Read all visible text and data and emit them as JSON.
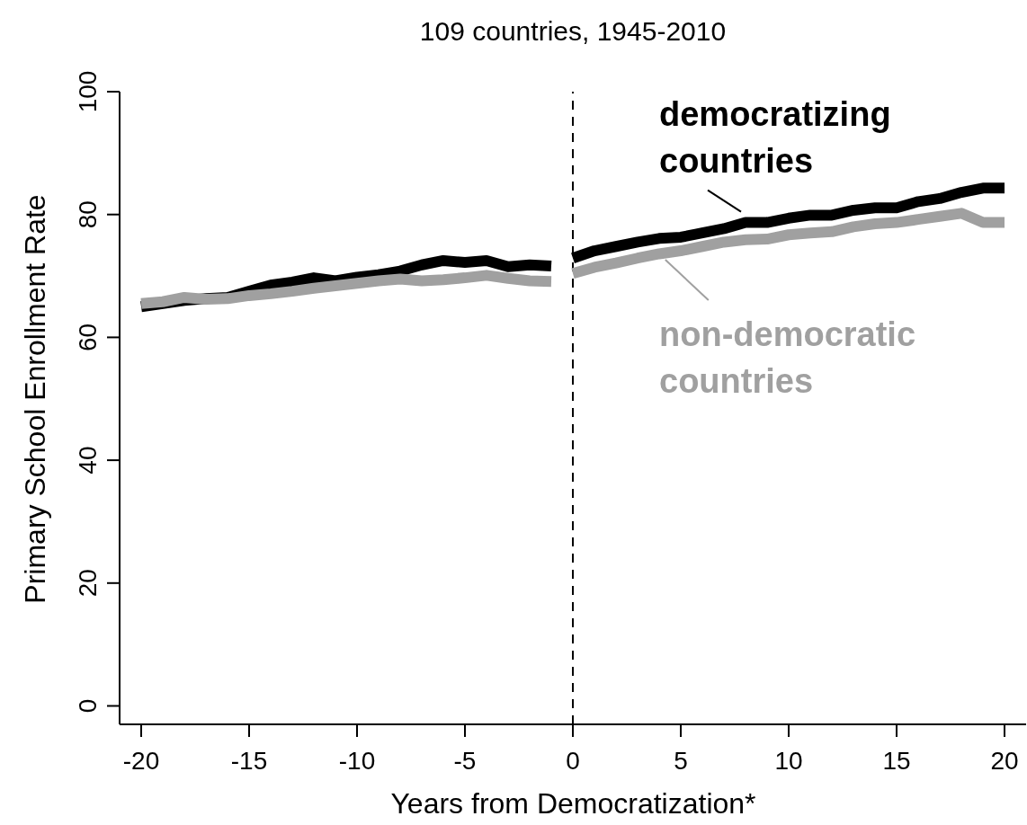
{
  "chart_data": {
    "type": "line",
    "title": "109 countries, 1945-2010",
    "xlabel": "Years from Democratization*",
    "ylabel": "Primary School Enrollment Rate",
    "xlim": [
      -21,
      21
    ],
    "ylim": [
      -3,
      100
    ],
    "xticks": [
      -20,
      -15,
      -10,
      -5,
      0,
      5,
      10,
      15,
      20
    ],
    "yticks": [
      0,
      20,
      40,
      60,
      80,
      100
    ],
    "grid": false,
    "legend": "top right",
    "marker": "none",
    "line_style": "solid",
    "ref_lines": [
      {
        "axis": "x",
        "value": 0,
        "color": "#000000",
        "line_style": "dashed"
      }
    ],
    "series": [
      {
        "color": "#000000",
        "x": [
          -20,
          -19,
          -18,
          -17,
          -16,
          -15,
          -14,
          -13,
          -12,
          -11,
          -10,
          -9,
          -8,
          -7,
          -6,
          -5,
          -4,
          -3,
          -2,
          -1
        ],
        "values": [
          65,
          65.5,
          66,
          66.3,
          66.5,
          67.5,
          68.5,
          69,
          69.7,
          69.2,
          69.8,
          70.2,
          70.8,
          71.8,
          72.5,
          72.2,
          72.5,
          71.5,
          71.8,
          71.6
        ]
      },
      {
        "color": "#a0a0a0",
        "x": [
          -20,
          -19,
          -18,
          -17,
          -16,
          -15,
          -14,
          -13,
          -12,
          -11,
          -10,
          -9,
          -8,
          -7,
          -6,
          -5,
          -4,
          -3,
          -2,
          -1
        ],
        "values": [
          65.5,
          65.8,
          66.5,
          66.2,
          66.3,
          66.8,
          67.1,
          67.5,
          68,
          68.4,
          68.8,
          69.2,
          69.5,
          69.2,
          69.4,
          69.7,
          70.1,
          69.6,
          69.2,
          69.1
        ]
      },
      {
        "name": "democratizing countries",
        "color": "#000000",
        "x": [
          0,
          1,
          2,
          3,
          4,
          5,
          6,
          7,
          8,
          9,
          10,
          11,
          12,
          13,
          14,
          15,
          16,
          17,
          18,
          19,
          20
        ],
        "values": [
          72.9,
          74.1,
          74.8,
          75.5,
          76.1,
          76.3,
          77,
          77.7,
          78.7,
          78.7,
          79.4,
          79.9,
          79.9,
          80.7,
          81.1,
          81.1,
          82.1,
          82.6,
          83.6,
          84.3,
          84.3
        ]
      },
      {
        "name": "non-democratic countries",
        "color": "#a0a0a0",
        "x": [
          0,
          1,
          2,
          3,
          4,
          5,
          6,
          7,
          8,
          9,
          10,
          11,
          12,
          13,
          14,
          15,
          16,
          17,
          18,
          19,
          20
        ],
        "values": [
          70.4,
          71.4,
          72.1,
          72.9,
          73.6,
          74.1,
          74.8,
          75.5,
          75.9,
          76,
          76.7,
          77,
          77.2,
          78,
          78.5,
          78.7,
          79.2,
          79.7,
          80.2,
          78.7,
          78.7
        ]
      }
    ]
  }
}
